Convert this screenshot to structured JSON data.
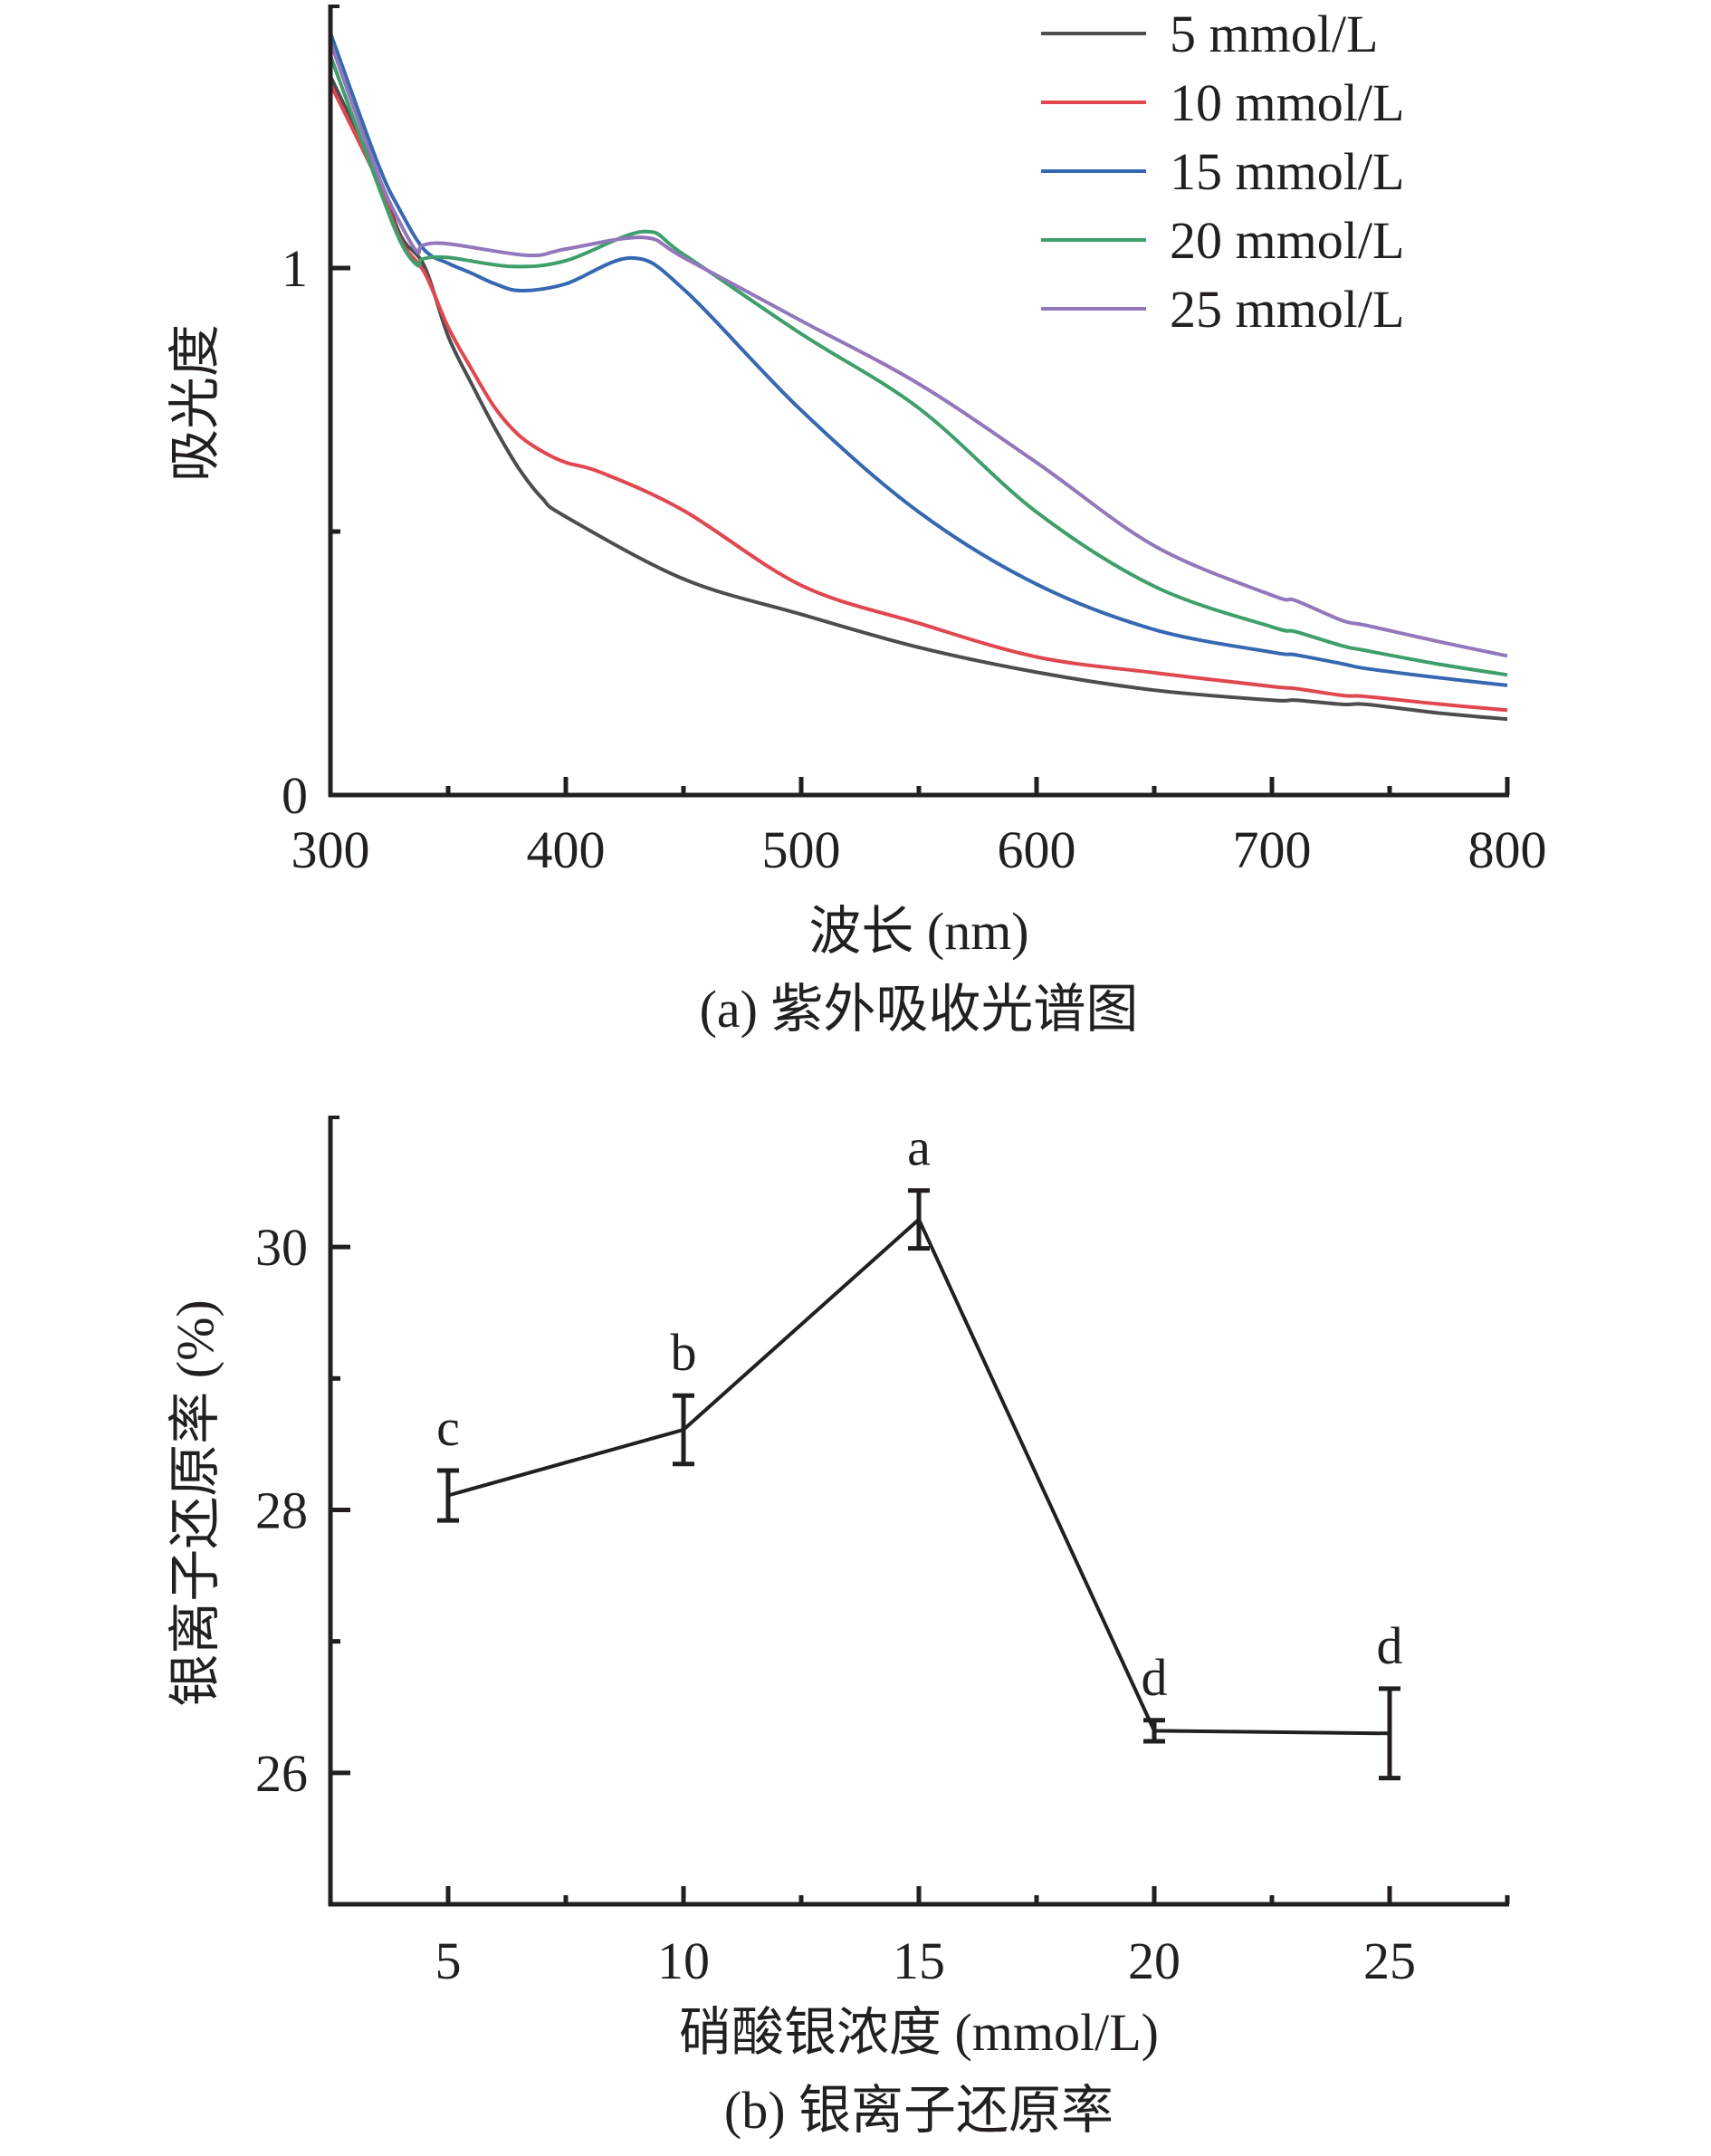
{
  "chart_data": [
    {
      "type": "line",
      "panel": "a",
      "caption": "(a) 紫外吸收光谱图",
      "title": "",
      "xlabel": "波长 (nm)",
      "ylabel": "吸光度",
      "xlim": [
        300,
        800
      ],
      "ylim": [
        0,
        1.5
      ],
      "x_ticks": [
        300,
        400,
        500,
        600,
        700,
        800
      ],
      "x_tick_labels": [
        "300",
        "400",
        "500",
        "600",
        "700",
        "800"
      ],
      "y_ticks": [
        0,
        1
      ],
      "y_tick_labels": [
        "0",
        "1"
      ],
      "y_minor_ticks": [
        0.5
      ],
      "x_minor_ticks": [
        350,
        450,
        550,
        650,
        750
      ],
      "grid": false,
      "legend_position": "top-right",
      "series": [
        {
          "name": "5 mmol/L",
          "color": "#4d4d4d",
          "x": [
            300,
            320,
            330,
            340,
            350,
            360,
            370,
            380,
            390,
            400,
            450,
            500,
            550,
            600,
            650,
            700,
            710,
            730,
            740,
            770,
            800
          ],
          "y": [
            1.364,
            1.175,
            1.06,
            1.003,
            0.871,
            0.78,
            0.695,
            0.62,
            0.563,
            0.528,
            0.41,
            0.343,
            0.28,
            0.233,
            0.199,
            0.18,
            0.18,
            0.172,
            0.172,
            0.156,
            0.144
          ]
        },
        {
          "name": "10 mmol/L",
          "color": "#e0474f",
          "x": [
            300,
            320,
            330,
            340,
            350,
            360,
            370,
            380,
            390,
            400,
            415,
            450,
            500,
            550,
            600,
            650,
            700,
            710,
            730,
            740,
            770,
            800
          ],
          "y": [
            1.349,
            1.166,
            1.051,
            0.991,
            0.888,
            0.808,
            0.734,
            0.683,
            0.652,
            0.631,
            0.612,
            0.54,
            0.398,
            0.326,
            0.262,
            0.232,
            0.206,
            0.202,
            0.189,
            0.187,
            0.173,
            0.161
          ]
        },
        {
          "name": "15 mmol/L",
          "color": "#3668b1",
          "x": [
            300,
            320,
            330,
            340,
            350,
            360,
            370,
            381,
            400,
            428,
            450,
            500,
            550,
            600,
            650,
            700,
            710,
            730,
            740,
            770,
            800
          ],
          "y": [
            1.446,
            1.2,
            1.106,
            1.034,
            1.009,
            0.99,
            0.97,
            0.957,
            0.97,
            1.019,
            0.96,
            0.73,
            0.537,
            0.4,
            0.314,
            0.271,
            0.266,
            0.249,
            0.24,
            0.223,
            0.208
          ]
        },
        {
          "name": "20 mmol/L",
          "color": "#3e9f6b",
          "x": [
            300,
            320,
            330,
            337,
            339,
            350,
            377,
            400,
            433,
            450,
            500,
            550,
            600,
            650,
            700,
            710,
            730,
            740,
            770,
            800
          ],
          "y": [
            1.403,
            1.16,
            1.048,
            1.005,
            1.017,
            1.02,
            1.003,
            1.014,
            1.069,
            1.026,
            0.875,
            0.734,
            0.537,
            0.396,
            0.319,
            0.31,
            0.283,
            0.274,
            0.249,
            0.228
          ]
        },
        {
          "name": "25 mmol/L",
          "color": "#9277ba",
          "x": [
            300,
            320,
            330,
            337,
            339,
            350,
            384,
            400,
            433,
            450,
            500,
            550,
            600,
            650,
            700,
            710,
            730,
            740,
            770,
            800
          ],
          "y": [
            1.429,
            1.18,
            1.082,
            1.03,
            1.043,
            1.046,
            1.024,
            1.036,
            1.058,
            1.02,
            0.9,
            0.78,
            0.631,
            0.473,
            0.379,
            0.369,
            0.331,
            0.322,
            0.292,
            0.264
          ]
        }
      ]
    },
    {
      "type": "line",
      "panel": "b",
      "caption": "(b) 银离子还原率",
      "title": "",
      "xlabel": "硝酸银浓度 (mmol/L)",
      "ylabel": "银离子还原率 (%)",
      "xlim": [
        2.5,
        27.5
      ],
      "ylim": [
        25,
        31
      ],
      "x_ticks": [
        5,
        10,
        15,
        20,
        25
      ],
      "x_tick_labels": [
        "5",
        "10",
        "15",
        "20",
        "25"
      ],
      "x_minor_ticks": [
        7.5,
        12.5,
        17.5,
        22.5
      ],
      "y_ticks": [
        26,
        28,
        30
      ],
      "y_tick_labels": [
        "26",
        "28",
        "30"
      ],
      "y_minor_ticks": [
        27,
        29
      ],
      "grid": false,
      "color": "#231f20",
      "series": [
        {
          "name": "银离子还原率",
          "x": [
            5,
            10,
            15,
            20,
            25
          ],
          "y": [
            28.11,
            28.61,
            30.21,
            26.32,
            26.3
          ],
          "error": [
            0.19,
            0.26,
            0.22,
            0.08,
            0.34
          ],
          "labels": [
            "c",
            "b",
            "a",
            "d",
            "d"
          ]
        }
      ]
    }
  ]
}
